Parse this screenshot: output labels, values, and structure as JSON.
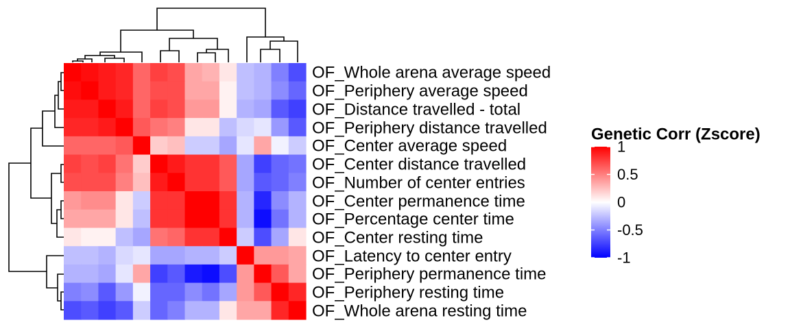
{
  "chart_data": {
    "type": "heatmap",
    "title": "",
    "row_labels": [
      "OF_Whole arena average speed",
      "OF_Periphery average speed",
      "OF_Distance travelled - total",
      "OF_Periphery distance travelled",
      "OF_Center average speed",
      "OF_Center distance travelled",
      "OF_Number of center entries",
      "OF_Center permanence time",
      "OF_Percentage center time",
      "OF_Center resting time",
      "OF_Latency to center entry",
      "OF_Periphery permanence time",
      "OF_Periphery resting time",
      "OF_Whole arena resting time"
    ],
    "column_labels_shown": false,
    "values": [
      [
        1.0,
        0.95,
        0.9,
        0.85,
        0.6,
        0.75,
        0.7,
        0.35,
        0.3,
        0.1,
        -0.25,
        -0.3,
        -0.5,
        -0.7
      ],
      [
        0.95,
        1.0,
        0.9,
        0.85,
        0.6,
        0.7,
        0.7,
        0.35,
        0.35,
        0.05,
        -0.25,
        -0.3,
        -0.45,
        -0.6
      ],
      [
        0.9,
        0.9,
        1.0,
        0.9,
        0.6,
        0.75,
        0.7,
        0.4,
        0.4,
        0.05,
        -0.3,
        -0.35,
        -0.65,
        -0.75
      ],
      [
        0.85,
        0.85,
        0.9,
        1.0,
        0.65,
        0.55,
        0.5,
        0.1,
        0.1,
        -0.25,
        -0.15,
        -0.1,
        -0.4,
        -0.65
      ],
      [
        0.6,
        0.6,
        0.6,
        0.65,
        1.0,
        0.2,
        0.25,
        -0.2,
        -0.2,
        -0.35,
        -0.1,
        0.35,
        -0.05,
        -0.2
      ],
      [
        0.75,
        0.7,
        0.75,
        0.55,
        0.2,
        1.0,
        0.9,
        0.8,
        0.8,
        0.65,
        -0.35,
        -0.75,
        -0.6,
        -0.55
      ],
      [
        0.7,
        0.7,
        0.7,
        0.5,
        0.25,
        0.9,
        1.0,
        0.8,
        0.8,
        0.65,
        -0.35,
        -0.65,
        -0.6,
        -0.5
      ],
      [
        0.4,
        0.45,
        0.45,
        0.1,
        -0.2,
        0.8,
        0.8,
        1.0,
        1.0,
        0.8,
        -0.3,
        -0.85,
        -0.45,
        -0.3
      ],
      [
        0.35,
        0.35,
        0.35,
        0.1,
        -0.25,
        0.8,
        0.8,
        1.0,
        1.0,
        0.8,
        -0.3,
        -0.95,
        -0.55,
        -0.3
      ],
      [
        0.1,
        0.05,
        0.05,
        -0.25,
        -0.35,
        0.55,
        0.6,
        0.8,
        0.8,
        1.0,
        -0.2,
        -0.7,
        -0.35,
        0.1
      ],
      [
        -0.25,
        -0.25,
        -0.3,
        -0.15,
        -0.1,
        -0.35,
        -0.35,
        -0.3,
        -0.3,
        -0.2,
        1.0,
        0.4,
        0.4,
        0.35
      ],
      [
        -0.3,
        -0.3,
        -0.35,
        -0.1,
        0.35,
        -0.75,
        -0.65,
        -0.9,
        -0.95,
        -0.7,
        0.4,
        1.0,
        0.65,
        0.35
      ],
      [
        -0.5,
        -0.45,
        -0.65,
        -0.4,
        -0.05,
        -0.6,
        -0.6,
        -0.45,
        -0.55,
        -0.35,
        0.4,
        0.65,
        1.0,
        0.85
      ],
      [
        -0.7,
        -0.65,
        -0.75,
        -0.65,
        -0.2,
        -0.6,
        -0.5,
        -0.3,
        -0.3,
        0.1,
        0.35,
        0.35,
        0.85,
        1.0
      ]
    ],
    "color_scale": {
      "min": -1,
      "mid": 0,
      "max": 1,
      "low_color": "#0000FF",
      "mid_color": "#FFFFFF",
      "high_color": "#FF0000"
    },
    "legend": {
      "title": "Genetic Corr (Zscore)",
      "placement": "right",
      "ticks": [
        {
          "value": 1,
          "label": "1"
        },
        {
          "value": 0.5,
          "label": "0.5"
        },
        {
          "value": 0,
          "label": "0"
        },
        {
          "value": -0.5,
          "label": "-0.5"
        },
        {
          "value": -1,
          "label": "-1"
        }
      ]
    },
    "dendrograms": {
      "rows": true,
      "columns": true
    }
  }
}
